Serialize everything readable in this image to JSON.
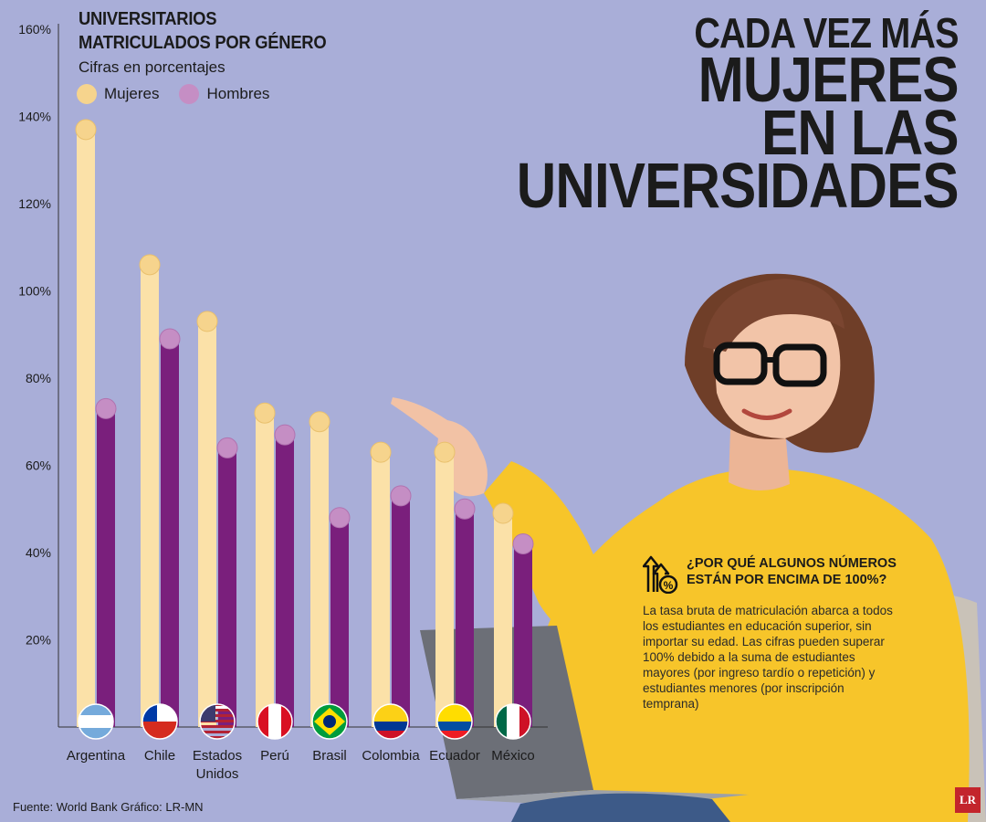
{
  "chart_data": {
    "type": "bar",
    "title_lines": [
      "UNIVERSITARIOS",
      "MATRICULADOS POR GÉNERO"
    ],
    "subtitle": "Cifras en porcentajes",
    "categories": [
      "Argentina",
      "Chile",
      "Estados Unidos",
      "Perú",
      "Brasil",
      "Colombia",
      "Ecuador",
      "México"
    ],
    "category_label_lines": [
      [
        "Argentina"
      ],
      [
        "Chile"
      ],
      [
        "Estados",
        "Unidos"
      ],
      [
        "Perú"
      ],
      [
        "Brasil"
      ],
      [
        "Colombia"
      ],
      [
        "Ecuador"
      ],
      [
        "México"
      ]
    ],
    "series": [
      {
        "name": "Mujeres",
        "color": "#fbe1a8",
        "values": [
          137,
          106,
          93,
          72,
          70,
          63,
          63,
          49
        ]
      },
      {
        "name": "Hombres",
        "color": "#7a1f7c",
        "marker_color": "#c58ec4",
        "values": [
          73,
          89,
          64,
          67,
          48,
          53,
          50,
          42
        ]
      }
    ],
    "ylim": [
      0,
      160
    ],
    "yticks": [
      {
        "value": 20,
        "label": "20%"
      },
      {
        "value": 40,
        "label": "40%"
      },
      {
        "value": 60,
        "label": "60%"
      },
      {
        "value": 80,
        "label": "80%"
      },
      {
        "value": 100,
        "label": "100%"
      },
      {
        "value": 120,
        "label": "120%"
      },
      {
        "value": 140,
        "label": "140%"
      },
      {
        "value": 160,
        "label": "160%"
      }
    ],
    "grid": false,
    "legend_position": "top-left",
    "flag_icons": [
      "argentina-flag-icon",
      "chile-flag-icon",
      "usa-flag-icon",
      "peru-flag-icon",
      "brazil-flag-icon",
      "colombia-flag-icon",
      "ecuador-flag-icon",
      "mexico-flag-icon"
    ]
  },
  "legend": {
    "mujeres": "Mujeres",
    "hombres": "Hombres"
  },
  "headline": {
    "line1": "CADA VEZ MÁS",
    "line2": "MUJERES",
    "line3": "EN LAS",
    "line4": "UNIVERSIDADES"
  },
  "info": {
    "title_lines": [
      "¿POR QUÉ ALGUNOS NÚMEROS",
      "ESTÁN POR ENCIMA DE 100%?"
    ],
    "body": "La tasa bruta de matriculación abarca a todos los estudiantes en educación superior, sin importar su edad. Las cifras pueden superar 100% debido a la suma de estudiantes mayores (por ingreso tardío o repetición) y estudiantes menores (por inscripción temprana)",
    "icon": "percent-growth-icon"
  },
  "source": "Fuente: World Bank  Gráfico: LR-MN",
  "logo": "LR",
  "colors": {
    "background": "#a9aed8",
    "women": "#fbe1a8",
    "men": "#7a1f7c",
    "sweater": "#f7c52a"
  }
}
